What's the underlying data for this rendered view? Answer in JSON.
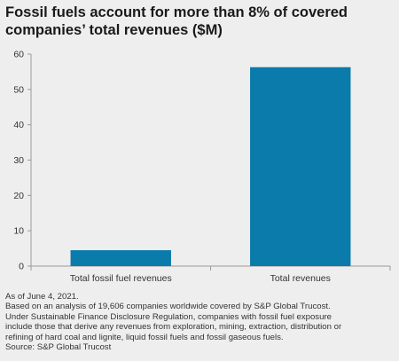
{
  "title": "Fossil fuels account for more than 8% of covered companies’ total revenues ($M)",
  "colors": {
    "bar": "#0a7bab",
    "axis": "#999999",
    "background": "#eeeeee"
  },
  "chart_data": {
    "type": "bar",
    "title": "Fossil fuels account for more than 8% of covered companies’ total revenues ($M)",
    "categories": [
      "Total fossil fuel revenues",
      "Total revenues"
    ],
    "values": [
      4.5,
      56.3
    ],
    "xlabel": "",
    "ylabel": "",
    "ylim": [
      0,
      60
    ],
    "yticks": [
      0,
      10,
      20,
      30,
      40,
      50,
      60
    ],
    "grid": false,
    "legend": "none"
  },
  "footer": {
    "line1": "As of June 4, 2021.",
    "line2": "Based on an analysis of 19,606 companies worldwide covered by S&P Global Trucost.",
    "line3": "Under Sustainable Finance Disclosure Regulation, companies with fossil fuel exposure",
    "line4": "include those that derive any revenues from exploration, mining, extraction, distribution or",
    "line5": "refining of hard coal and lignite, liquid fossil fuels and fossil gaseous fuels.",
    "line6": "Source: S&P Global Trucost"
  }
}
